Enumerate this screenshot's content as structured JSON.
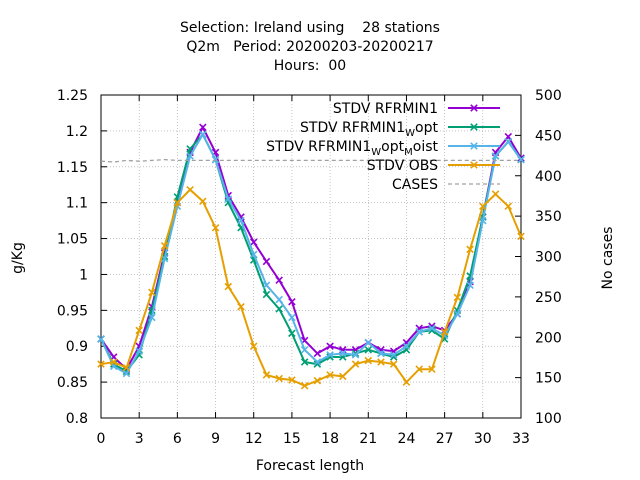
{
  "chart_data": {
    "type": "line",
    "title_lines": [
      "Selection: Ireland using    28 stations",
      "Q2m   Period: 20200203-20200217",
      "Hours:  00"
    ],
    "xlabel": "Forecast length",
    "ylabel": "g/Kg",
    "y2label": "No cases",
    "xlim": [
      0,
      33
    ],
    "ylim": [
      0.8,
      1.25
    ],
    "y2lim": [
      100,
      500
    ],
    "xticks": [
      "0",
      "3",
      "6",
      "9",
      "12",
      "15",
      "18",
      "21",
      "24",
      "27",
      "30",
      "33"
    ],
    "yticks": [
      "0.8",
      "0.85",
      "0.9",
      "0.95",
      "1",
      "1.05",
      "1.1",
      "1.15",
      "1.2",
      "1.25"
    ],
    "y2ticks": [
      "100",
      "150",
      "200",
      "250",
      "300",
      "350",
      "400",
      "450",
      "500"
    ],
    "grid": true,
    "legend_position": "top-right",
    "x": [
      0,
      1,
      2,
      3,
      4,
      5,
      6,
      7,
      8,
      9,
      10,
      11,
      12,
      13,
      14,
      15,
      16,
      17,
      18,
      19,
      20,
      21,
      22,
      23,
      24,
      25,
      26,
      27,
      28,
      29,
      30,
      31,
      32,
      33
    ],
    "series": [
      {
        "name": "STDV RFRMIN1",
        "name_parts": [
          {
            "t": "STDV RFRMIN1"
          }
        ],
        "color": "#9400d3",
        "marker": "x",
        "axis": "y1",
        "values": [
          0.91,
          0.885,
          0.868,
          0.9,
          0.955,
          1.03,
          1.1,
          1.17,
          1.205,
          1.17,
          1.11,
          1.08,
          1.045,
          1.018,
          0.992,
          0.962,
          0.908,
          0.89,
          0.9,
          0.895,
          0.895,
          0.905,
          0.895,
          0.893,
          0.905,
          0.925,
          0.928,
          0.922,
          0.945,
          0.99,
          1.08,
          1.17,
          1.192,
          1.162
        ]
      },
      {
        "name": "STDV RFRMIN1_Wopt",
        "name_parts": [
          {
            "t": "STDV RFRMIN1"
          },
          {
            "t": "W",
            "sub": true
          },
          {
            "t": "opt"
          }
        ],
        "color": "#009e73",
        "marker": "x",
        "axis": "y1",
        "values": [
          0.91,
          0.875,
          0.865,
          0.888,
          0.95,
          1.025,
          1.108,
          1.175,
          1.195,
          1.16,
          1.1,
          1.065,
          1.02,
          0.972,
          0.952,
          0.918,
          0.878,
          0.875,
          0.885,
          0.885,
          0.89,
          0.895,
          0.89,
          0.885,
          0.895,
          0.92,
          0.922,
          0.91,
          0.95,
          0.998,
          1.08,
          1.165,
          1.185,
          1.16
        ]
      },
      {
        "name": "STDV RFRMIN1_Wopt_Moist",
        "name_parts": [
          {
            "t": "STDV RFRMIN1"
          },
          {
            "t": "W",
            "sub": true
          },
          {
            "t": "opt"
          },
          {
            "t": "M",
            "sub": true
          },
          {
            "t": "oist"
          }
        ],
        "color": "#56b4e9",
        "marker": "x",
        "axis": "y1",
        "values": [
          0.91,
          0.872,
          0.862,
          0.893,
          0.94,
          1.022,
          1.095,
          1.165,
          1.195,
          1.16,
          1.105,
          1.075,
          1.028,
          0.985,
          0.965,
          0.94,
          0.895,
          0.878,
          0.888,
          0.89,
          0.888,
          0.905,
          0.89,
          0.888,
          0.9,
          0.92,
          0.925,
          0.915,
          0.945,
          0.985,
          1.075,
          1.165,
          1.185,
          1.16
        ]
      },
      {
        "name": "STDV OBS",
        "name_parts": [
          {
            "t": "STDV OBS"
          }
        ],
        "color": "#e69f00",
        "marker": "x",
        "axis": "y1",
        "values": [
          0.875,
          0.878,
          0.87,
          0.922,
          0.975,
          1.04,
          1.1,
          1.118,
          1.102,
          1.065,
          0.983,
          0.955,
          0.9,
          0.86,
          0.855,
          0.853,
          0.845,
          0.852,
          0.86,
          0.858,
          0.875,
          0.88,
          0.878,
          0.875,
          0.85,
          0.868,
          0.868,
          0.92,
          0.968,
          1.035,
          1.095,
          1.112,
          1.095,
          1.053
        ]
      },
      {
        "name": "CASES",
        "name_parts": [
          {
            "t": "CASES"
          }
        ],
        "color": "#a0a0a0",
        "marker": "none",
        "dashed": true,
        "axis": "y2",
        "values": [
          418,
          417,
          419,
          418,
          419,
          420,
          419,
          419,
          419,
          419,
          419,
          419,
          419,
          419,
          419,
          419,
          419,
          419,
          419,
          419,
          419,
          419,
          419,
          419,
          419,
          419,
          419,
          419,
          419,
          419,
          419,
          419,
          419,
          419
        ]
      }
    ]
  }
}
